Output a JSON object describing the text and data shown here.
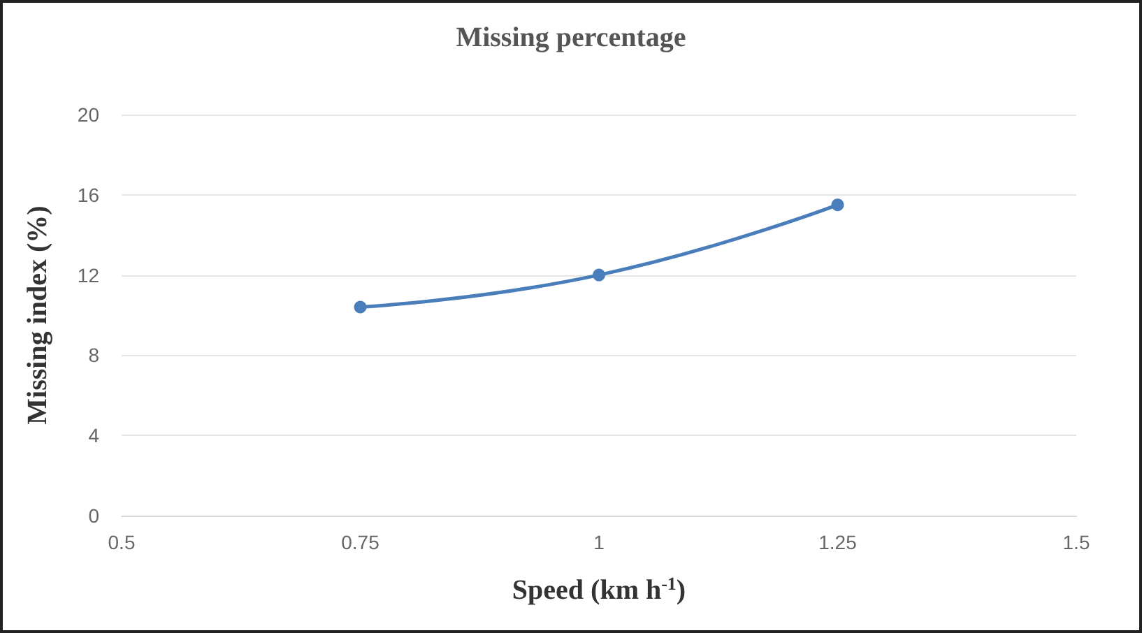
{
  "chart_data": {
    "type": "line",
    "title": "Missing percentage",
    "xlabel": "Speed (km h$^{-1}$)",
    "ylabel": "Missing index (%)",
    "x": [
      0.75,
      1,
      1.25
    ],
    "series": [
      {
        "color": "#4a7ebb",
        "values": [
          10.4,
          12.0,
          15.5
        ]
      }
    ],
    "xlim": [
      0.5,
      1.5
    ],
    "xticks": [
      0.5,
      0.75,
      1,
      1.25,
      1.5
    ],
    "ylim": [
      0,
      20
    ],
    "yticks": [
      0,
      4,
      8,
      12,
      16,
      20
    ],
    "grid": "y",
    "marker": "circle",
    "line_style": "solid"
  }
}
